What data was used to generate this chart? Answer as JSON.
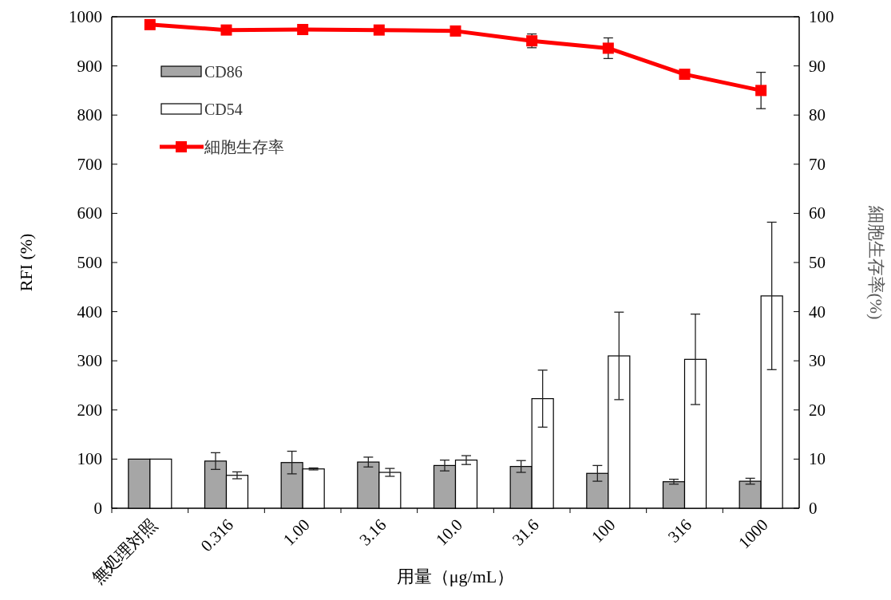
{
  "chart_data": {
    "type": "bar",
    "xlabel": "用量（μg/mL）",
    "ylabel": "RFI (%)",
    "y2label": "細胞生存率(%)",
    "categories": [
      "無処理対照",
      "0.316",
      "1.00",
      "3.16",
      "10.0",
      "31.6",
      "100",
      "316",
      "1000"
    ],
    "series": [
      {
        "name": "CD86",
        "color": "#a6a6a6",
        "values": [
          100,
          96,
          93,
          94,
          87,
          85,
          71,
          54,
          55
        ],
        "errors": [
          null,
          17,
          23,
          10,
          11,
          12,
          16,
          5,
          6
        ]
      },
      {
        "name": "CD54",
        "color": "#ffffff",
        "values": [
          100,
          67,
          80,
          73,
          98,
          223,
          310,
          303,
          432
        ],
        "errors": [
          null,
          7,
          2,
          8,
          9,
          58,
          89,
          92,
          150
        ]
      },
      {
        "name": "細胞生存率",
        "type": "line",
        "axis": "y2",
        "color": "#ff0000",
        "marker": "square",
        "values": [
          98.4,
          97.3,
          97.4,
          97.3,
          97.1,
          95.1,
          93.6,
          88.3,
          85.0
        ],
        "errors": [
          null,
          null,
          null,
          null,
          null,
          1.4,
          2.1,
          null,
          3.7
        ]
      }
    ],
    "ylim": [
      0,
      1000
    ],
    "yticks": [
      0,
      100,
      200,
      300,
      400,
      500,
      600,
      700,
      800,
      900,
      1000
    ],
    "y2lim": [
      0,
      100
    ],
    "y2ticks": [
      0,
      10,
      20,
      30,
      40,
      50,
      60,
      70,
      80,
      90,
      100
    ],
    "legend": "top left",
    "grid": false
  }
}
